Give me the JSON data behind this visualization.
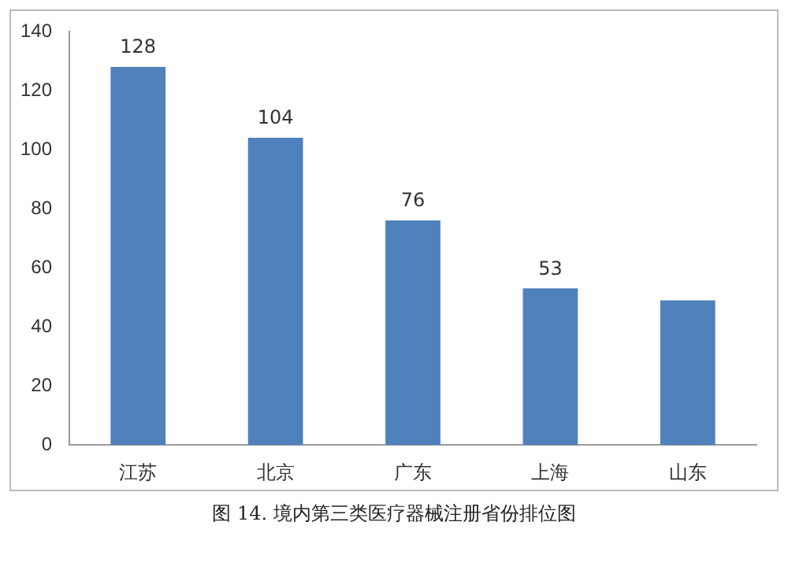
{
  "chart_data": {
    "type": "bar",
    "categories": [
      "江苏",
      "北京",
      "广东",
      "上海",
      "山东"
    ],
    "values": [
      128,
      104,
      76,
      53,
      49
    ],
    "value_labels": [
      "128",
      "104",
      "76",
      "53",
      null
    ],
    "color": "#4f81bd",
    "ylim": [
      0,
      140
    ],
    "yticks": [
      0,
      20,
      40,
      60,
      80,
      100,
      120,
      140
    ],
    "grid": false,
    "legend": false,
    "annotations": [
      "图 14. 境内第三类医疗器械注册省份排位图"
    ]
  }
}
